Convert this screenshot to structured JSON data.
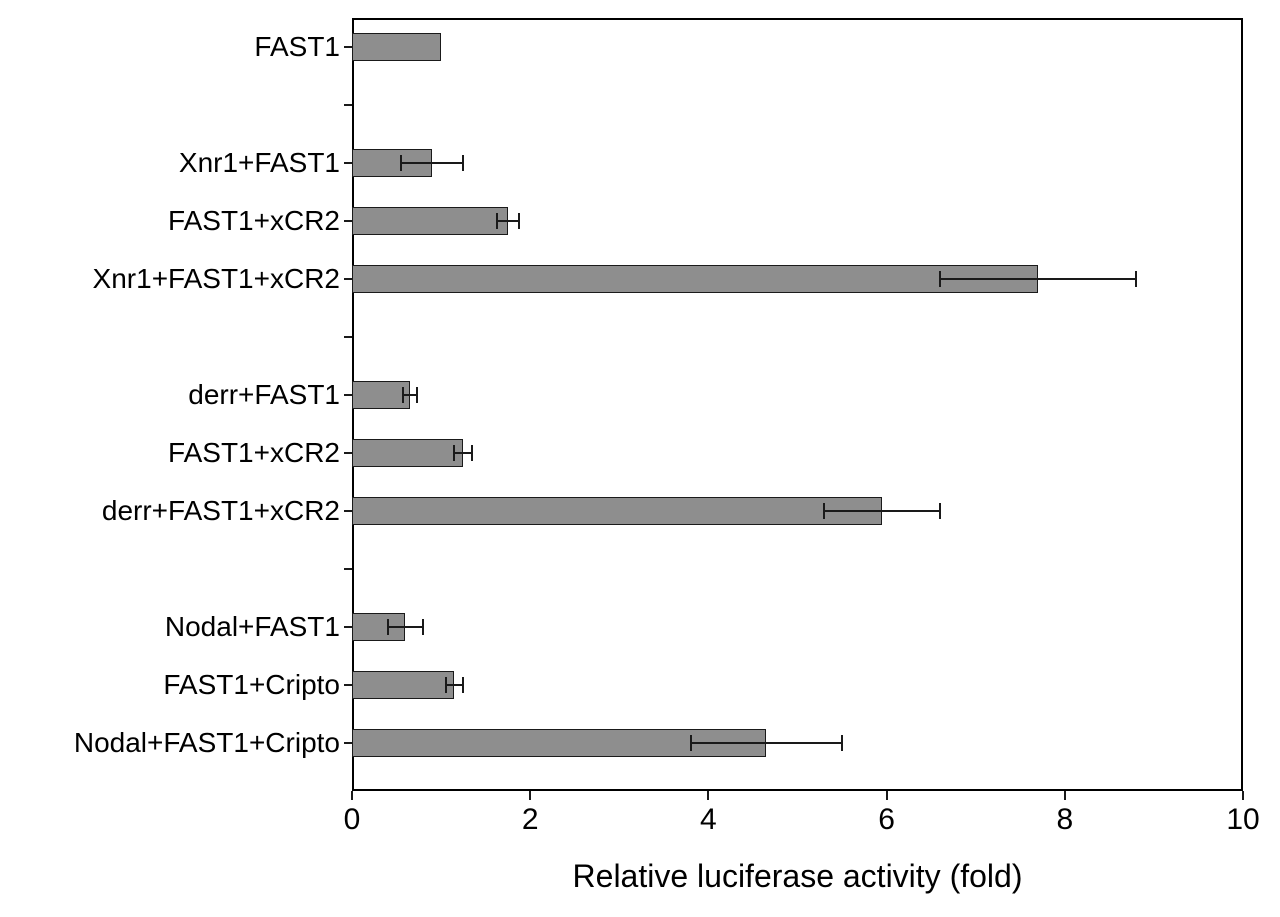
{
  "chart_data": {
    "type": "bar",
    "orientation": "horizontal",
    "title": "",
    "xlabel": "Relative luciferase activity (fold)",
    "ylabel": "",
    "xlim": [
      0,
      10
    ],
    "x_ticks": [
      0,
      2,
      4,
      6,
      8,
      10
    ],
    "grid": false,
    "legend": false,
    "bar_color": "#8e8e8e",
    "bar_border_color": "#1a1a1a",
    "axis_color": "#000000",
    "total_slots": 13,
    "rows": [
      {
        "label": "FAST1",
        "slot": 0,
        "value": 1.0,
        "error": 0
      },
      {
        "label": "Xnr1+FAST1",
        "slot": 2,
        "value": 0.9,
        "error": 0.35
      },
      {
        "label": "FAST1+xCR2",
        "slot": 3,
        "value": 1.75,
        "error": 0.12
      },
      {
        "label": "Xnr1+FAST1+xCR2",
        "slot": 4,
        "value": 7.7,
        "error": 1.1
      },
      {
        "label": "derr+FAST1",
        "slot": 6,
        "value": 0.65,
        "error": 0.08
      },
      {
        "label": "FAST1+xCR2",
        "slot": 7,
        "value": 1.25,
        "error": 0.1
      },
      {
        "label": "derr+FAST1+xCR2",
        "slot": 8,
        "value": 5.95,
        "error": 0.65
      },
      {
        "label": "Nodal+FAST1",
        "slot": 10,
        "value": 0.6,
        "error": 0.2
      },
      {
        "label": "FAST1+Cripto",
        "slot": 11,
        "value": 1.15,
        "error": 0.1
      },
      {
        "label": "Nodal+FAST1+Cripto",
        "slot": 12,
        "value": 4.65,
        "error": 0.85
      }
    ]
  }
}
